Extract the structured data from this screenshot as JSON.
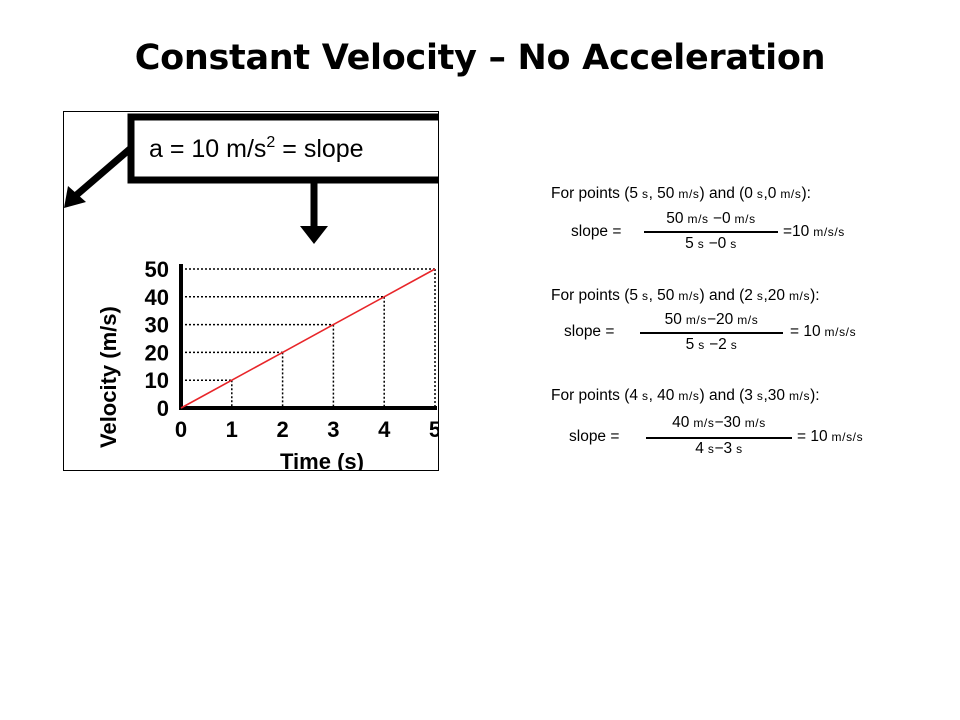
{
  "title": "Constant Velocity – No Acceleration",
  "figure": {
    "callout_text": "a = 10 m/s",
    "callout_exp": "2",
    "callout_suffix": " = slope",
    "y_axis_label": "Velocity (m/s)",
    "x_axis_label": "Time (s)",
    "y_ticks": [
      "50",
      "40",
      "30",
      "20",
      "10",
      "0"
    ],
    "x_ticks": [
      "0",
      "1",
      "2",
      "3",
      "4",
      "5"
    ],
    "line_color": "#e8262a"
  },
  "chart_data": {
    "type": "line",
    "x": [
      0,
      1,
      2,
      3,
      4,
      5
    ],
    "series": [
      {
        "values": [
          0,
          10,
          20,
          30,
          40,
          50
        ]
      }
    ],
    "xlabel": "Time (s)",
    "ylabel": "Velocity (m/s)",
    "xlim": [
      0,
      5
    ],
    "ylim": [
      0,
      50
    ],
    "grid": "dotted guide lines at each point"
  },
  "calculations": [
    {
      "header": [
        [
          "For points (5",
          ""
        ],
        [
          " s",
          "u"
        ],
        [
          ", 50",
          ""
        ],
        [
          " m/s",
          "u"
        ],
        [
          ") and (0",
          ""
        ],
        [
          " s",
          "u"
        ],
        [
          ",0",
          ""
        ],
        [
          " m/s",
          "u"
        ],
        [
          "):",
          ""
        ]
      ],
      "label": "slope =",
      "numerator": [
        [
          "50",
          ""
        ],
        [
          " m/s",
          "u"
        ],
        [
          " −0",
          ""
        ],
        [
          " m/s",
          "u"
        ]
      ],
      "denominator": [
        [
          "5",
          ""
        ],
        [
          " s",
          "u"
        ],
        [
          " −0",
          ""
        ],
        [
          " s",
          "u"
        ]
      ],
      "result": [
        [
          "=10",
          ""
        ],
        [
          " m/s/s",
          "u"
        ]
      ]
    },
    {
      "header": [
        [
          "For points (5",
          ""
        ],
        [
          " s",
          "u"
        ],
        [
          ", 50",
          ""
        ],
        [
          " m/s",
          "u"
        ],
        [
          ") and (2",
          ""
        ],
        [
          " s",
          "u"
        ],
        [
          ",20",
          ""
        ],
        [
          " m/s",
          "u"
        ],
        [
          "):",
          ""
        ]
      ],
      "label": "slope =",
      "numerator": [
        [
          "50",
          ""
        ],
        [
          " m/s",
          "u"
        ],
        [
          "−20",
          ""
        ],
        [
          " m/s",
          "u"
        ]
      ],
      "denominator": [
        [
          "5",
          ""
        ],
        [
          " s",
          "u"
        ],
        [
          " −2",
          ""
        ],
        [
          " s",
          "u"
        ]
      ],
      "result": [
        [
          "= 10",
          ""
        ],
        [
          " m/s/s",
          "u"
        ]
      ]
    },
    {
      "header": [
        [
          "For points (4",
          ""
        ],
        [
          " s",
          "u"
        ],
        [
          ", 40",
          ""
        ],
        [
          " m/s",
          "u"
        ],
        [
          ") and (3",
          ""
        ],
        [
          " s",
          "u"
        ],
        [
          ",30",
          ""
        ],
        [
          " m/s",
          "u"
        ],
        [
          "):",
          ""
        ]
      ],
      "label": "slope =",
      "numerator": [
        [
          "40",
          ""
        ],
        [
          " m/s",
          "u"
        ],
        [
          "−30",
          ""
        ],
        [
          " m/s",
          "u"
        ]
      ],
      "denominator": [
        [
          "4",
          ""
        ],
        [
          " s",
          "u"
        ],
        [
          "−3",
          ""
        ],
        [
          " s",
          "u"
        ]
      ],
      "result": [
        [
          "= 10",
          ""
        ],
        [
          " m/s/s",
          "u"
        ]
      ]
    }
  ]
}
